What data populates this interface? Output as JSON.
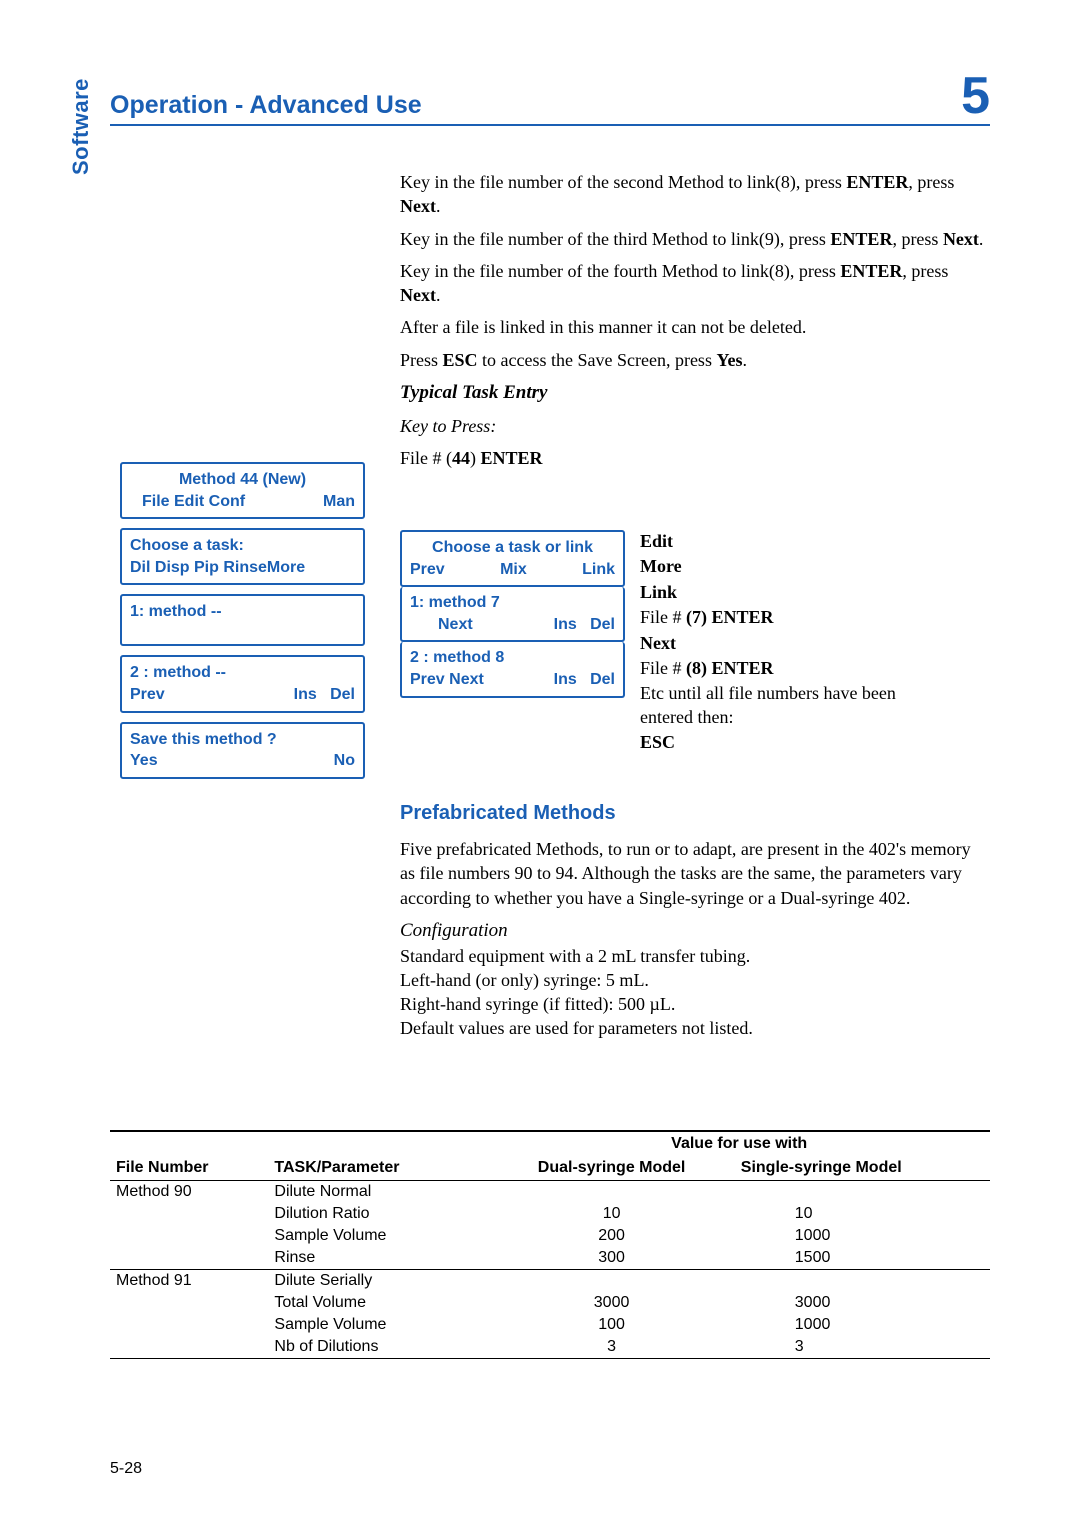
{
  "header": {
    "title": "Operation - Advanced Use",
    "chapter": "5"
  },
  "sidetab": "Software",
  "body": {
    "p1a": "Key in the file number of the second Method to link(8), press ",
    "p1b": "ENTER",
    "p1c": ", press ",
    "p1d": "Next",
    "p1e": ".",
    "p2a": "Key in the file number of the third Method to link(9), press ",
    "p3a": "Key in the file number of the fourth Method to link(8), press ",
    "p4": "After a file is linked in this manner it can not be deleted.",
    "p5a": "Press ",
    "p5b": "ESC",
    "p5c": " to access the Save Screen, press ",
    "p5d": "Yes",
    "p5e": ".",
    "h1": "Typical Task Entry",
    "h2": "Key to Press:",
    "p6a": "File # (",
    "p6b": "44",
    "p6c": ") ",
    "p6d": "ENTER"
  },
  "lcd_left": {
    "b1l1": "Method 44 (New)",
    "b1l2a": "File Edit Conf",
    "b1l2b": "Man",
    "b2l1": "Choose a task:",
    "b2l2": "Dil Disp Pip RinseMore",
    "b3l1": "1: method  --",
    "b4l1": "2 : method  --",
    "b4l2a": "Prev",
    "b4l2b": "Ins",
    "b4l2c": "Del",
    "b5l1": "Save this method ?",
    "b5l2a": "Yes",
    "b5l2b": "No"
  },
  "lcd_right": {
    "b1l1": "Choose a task or link",
    "b1l2a": "Prev",
    "b1l2b": "Mix",
    "b1l2c": "Link",
    "b2l1": "1: method   7",
    "b2l2a": "Next",
    "b2l2b": "Ins",
    "b2l2c": "Del",
    "b3l1": "2 : method   8",
    "b3l2a": "Prev Next",
    "b3l2b": "Ins",
    "b3l2c": "Del"
  },
  "keys": {
    "k1": "Edit",
    "k2": "More",
    "k3": "Link",
    "k4a": "File # ",
    "k4b": "(7) ENTER",
    "k5": "Next",
    "k6a": "File # ",
    "k6b": "(8) ENTER",
    "k7": "Etc until all file numbers have been entered then:",
    "k8": "ESC"
  },
  "lower": {
    "h": "Prefabricated Methods",
    "p1": "Five prefabricated Methods, to run or to adapt, are present in the 402's memory as file numbers 90 to 94. Although the tasks are the same, the parameters vary according to whether you have a Single-syringe or a Dual-syringe 402.",
    "h2": "Configuration",
    "p2": "Standard equipment with a 2 mL transfer tubing.",
    "p3": "Left-hand (or only) syringe: 5 mL.",
    "p4": "Right-hand syringe (if fitted): 500 µL.",
    "p5": "Default values are used for parameters not listed."
  },
  "table": {
    "suphead": "Value for use with",
    "h1": "File Number",
    "h2": "TASK/Parameter",
    "h3": "Dual-syringe Model",
    "h4": "Single-syringe Model",
    "rows": [
      {
        "fn": "Method 90",
        "tp": "Dilute Normal",
        "d": "",
        "s": ""
      },
      {
        "fn": "",
        "tp": "Dilution Ratio",
        "d": "10",
        "s": "10"
      },
      {
        "fn": "",
        "tp": "Sample Volume",
        "d": "200",
        "s": "1000"
      },
      {
        "fn": "",
        "tp": "Rinse",
        "d": "300",
        "s": "1500"
      },
      {
        "fn": "Method 91",
        "tp": "Dilute Serially",
        "d": "",
        "s": ""
      },
      {
        "fn": "",
        "tp": "Total Volume",
        "d": "3000",
        "s": "3000"
      },
      {
        "fn": "",
        "tp": "Sample Volume",
        "d": "100",
        "s": "1000"
      },
      {
        "fn": "",
        "tp": "Nb of Dilutions",
        "d": "3",
        "s": "3"
      }
    ]
  },
  "pagenum": "5-28"
}
